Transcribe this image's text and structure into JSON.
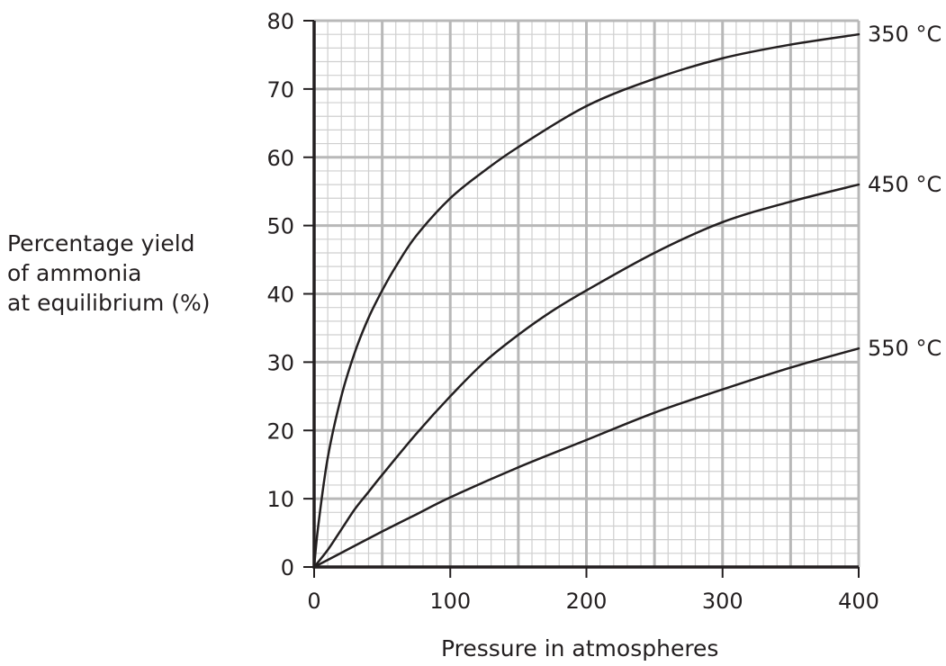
{
  "chart_data": {
    "type": "line",
    "title": "",
    "ylabel_lines": [
      "Percentage yield",
      "of ammonia",
      "at equilibrium (%)"
    ],
    "xlabel": "Pressure in atmospheres",
    "xlim": [
      0,
      400
    ],
    "ylim": [
      0,
      80
    ],
    "x_ticks": [
      0,
      100,
      200,
      300,
      400
    ],
    "y_ticks": [
      0,
      10,
      20,
      30,
      40,
      50,
      60,
      70,
      80
    ],
    "grid": true,
    "series": [
      {
        "name": "350 °C",
        "x": [
          0,
          3,
          10,
          20,
          30,
          40,
          50,
          60,
          75,
          100,
          125,
          150,
          200,
          250,
          300,
          350,
          400
        ],
        "y": [
          0,
          6,
          16,
          25,
          31.5,
          36.5,
          40.5,
          44,
          48.5,
          54,
          58,
          61.5,
          67.5,
          71.5,
          74.5,
          76.5,
          78
        ]
      },
      {
        "name": "450 °C",
        "x": [
          0,
          10,
          20,
          30,
          40,
          50,
          75,
          100,
          125,
          150,
          175,
          200,
          250,
          300,
          350,
          400
        ],
        "y": [
          0,
          2.5,
          5.5,
          8.5,
          11,
          13.5,
          19.5,
          25,
          30,
          34,
          37.5,
          40.5,
          46,
          50.5,
          53.5,
          56
        ]
      },
      {
        "name": "550 °C",
        "x": [
          0,
          25,
          50,
          75,
          100,
          150,
          200,
          250,
          300,
          350,
          400
        ],
        "y": [
          0,
          2.6,
          5.2,
          7.7,
          10.2,
          14.6,
          18.6,
          22.6,
          26,
          29.2,
          32
        ]
      }
    ]
  }
}
